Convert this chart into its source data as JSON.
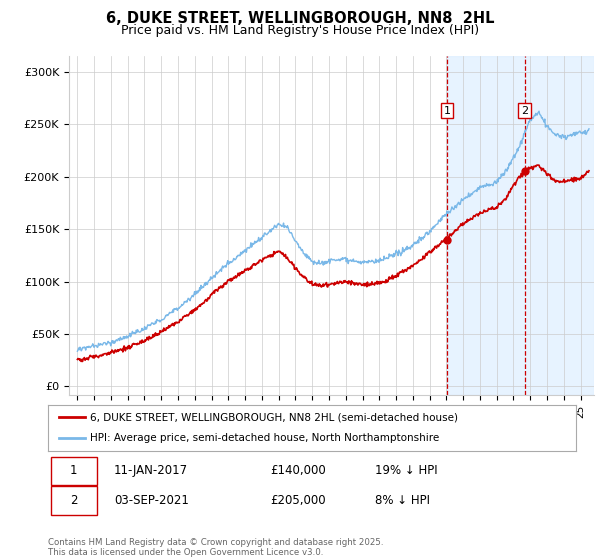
{
  "title": "6, DUKE STREET, WELLINGBOROUGH, NN8  2HL",
  "subtitle": "Price paid vs. HM Land Registry's House Price Index (HPI)",
  "hpi_color": "#7ab8e8",
  "price_color": "#cc0000",
  "marker_color": "#cc0000",
  "bg_color": "#ffffff",
  "grid_color": "#cccccc",
  "shaded_color": "#ddeeff",
  "dashed_color": "#cc0000",
  "transaction1_date_num": 2017.04,
  "transaction1_price": 140000,
  "transaction1_text": "11-JAN-2017",
  "transaction1_pct": "19% ↓ HPI",
  "transaction2_date_num": 2021.67,
  "transaction2_price": 205000,
  "transaction2_text": "03-SEP-2021",
  "transaction2_pct": "8% ↓ HPI",
  "ylabel_ticks": [
    0,
    50000,
    100000,
    150000,
    200000,
    250000,
    300000
  ],
  "ylabel_labels": [
    "£0",
    "£50K",
    "£100K",
    "£150K",
    "£200K",
    "£250K",
    "£300K"
  ],
  "xmin": 1994.5,
  "xmax": 2025.8,
  "ymin": -8000,
  "ymax": 315000,
  "legend_line1": "6, DUKE STREET, WELLINGBOROUGH, NN8 2HL (semi-detached house)",
  "legend_line2": "HPI: Average price, semi-detached house, North Northamptonshire",
  "footer": "Contains HM Land Registry data © Crown copyright and database right 2025.\nThis data is licensed under the Open Government Licence v3.0.",
  "title_fontsize": 10.5,
  "subtitle_fontsize": 9
}
